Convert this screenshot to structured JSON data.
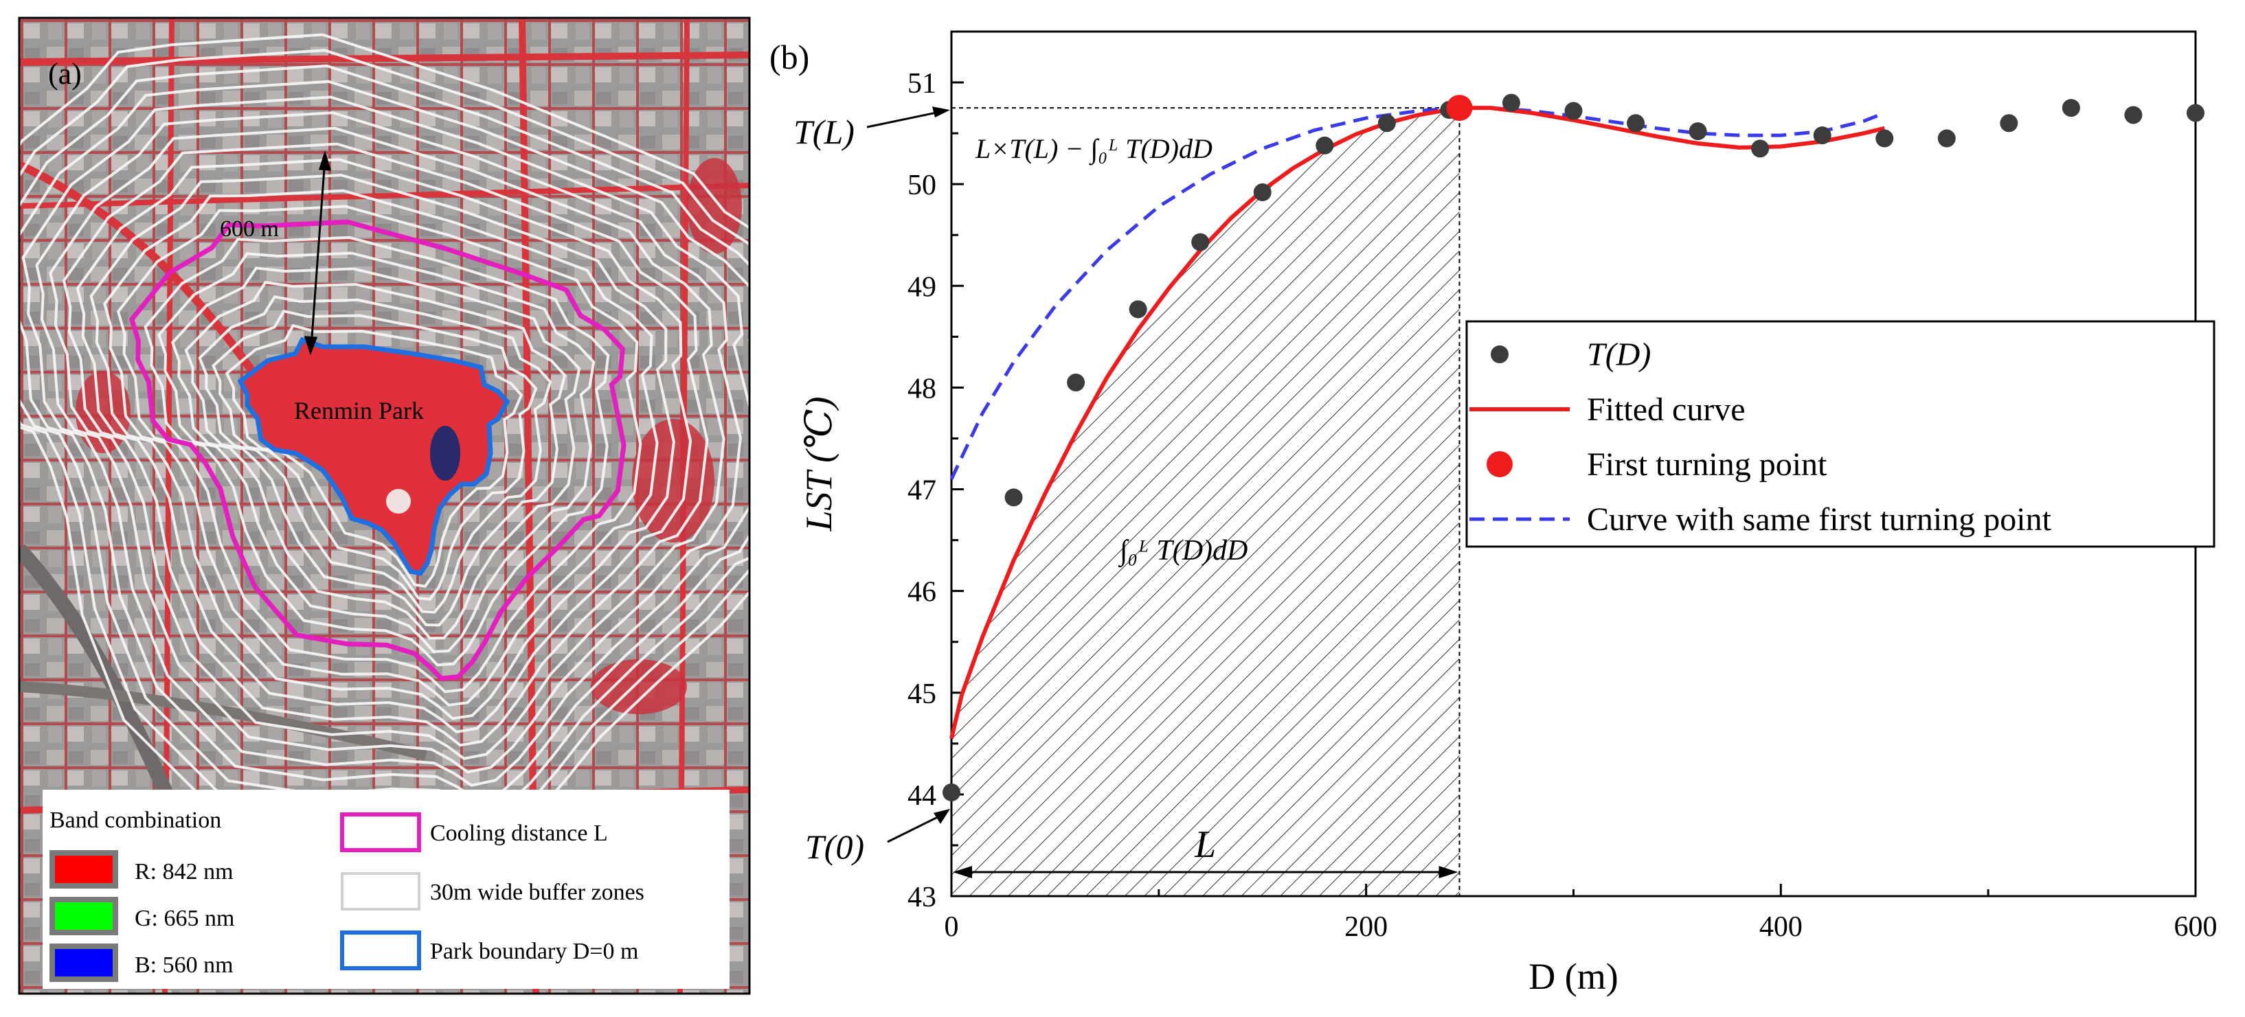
{
  "panel_a": {
    "label": "(a)",
    "park_name": "Renmin Park",
    "distance_label": "600 m",
    "legend": {
      "band_title": "Band combination",
      "bands": [
        {
          "label": "R: 842 nm",
          "color": "#ff0000"
        },
        {
          "label": "G: 665 nm",
          "color": "#00ff00"
        },
        {
          "label": "B: 560 nm",
          "color": "#0000ff"
        }
      ],
      "cooling_label": "Cooling distance L",
      "buffer_label": "30m wide buffer zones",
      "boundary_label": "Park boundary D=0 m"
    },
    "colors": {
      "cooling": "#e41fbf",
      "boundary": "#1f6fe0",
      "buffer": "#f4f4f4"
    }
  },
  "panel_b": {
    "label": "(b)",
    "left_annotations": {
      "tl": "T(L)",
      "t0": "T(0)"
    },
    "area_label_top": "L×T(L) − ∫₀ᴸ T(D)dD",
    "area_label_bottom": "∫₀ᴸ T(D)dD",
    "l_label": "L",
    "legend": {
      "items": [
        {
          "label": "T(D)",
          "kind": "dot",
          "color": "#3c3c3c"
        },
        {
          "label": "Fitted curve",
          "kind": "line",
          "color": "#ee1c1c"
        },
        {
          "label": "First turning point",
          "kind": "bigdot",
          "color": "#ee1c1c"
        },
        {
          "label": "Curve with same first turning point",
          "kind": "dash",
          "color": "#3a3ae8"
        }
      ]
    }
  },
  "chart_data": {
    "type": "scatter",
    "title": "",
    "xlabel": "D (m)",
    "ylabel": "LST (℃)",
    "xlim": [
      0,
      600
    ],
    "ylim": [
      43,
      51.5
    ],
    "xticks": [
      0,
      200,
      400,
      600
    ],
    "yticks": [
      43,
      44,
      45,
      46,
      47,
      48,
      49,
      50,
      51
    ],
    "turning_point": {
      "x": 245,
      "y": 50.75
    },
    "series": [
      {
        "name": "T(D)",
        "kind": "scatter",
        "color": "#3c3c3c",
        "x": [
          0,
          30,
          60,
          90,
          120,
          150,
          180,
          210,
          240,
          270,
          300,
          330,
          360,
          390,
          420,
          450,
          480,
          510,
          540,
          570,
          600
        ],
        "y": [
          44.02,
          46.92,
          48.05,
          48.77,
          49.43,
          49.92,
          50.38,
          50.6,
          50.73,
          50.8,
          50.72,
          50.6,
          50.52,
          50.35,
          50.48,
          50.45,
          50.45,
          50.6,
          50.75,
          50.68,
          50.7
        ]
      },
      {
        "name": "Fitted curve",
        "kind": "line",
        "color": "#ee1c1c",
        "x": [
          0,
          5,
          15,
          30,
          45,
          60,
          75,
          90,
          105,
          120,
          135,
          150,
          165,
          180,
          195,
          210,
          225,
          245,
          260,
          280,
          300,
          320,
          340,
          360,
          380,
          400,
          420,
          440,
          450
        ],
        "y": [
          44.55,
          44.98,
          45.55,
          46.3,
          46.95,
          47.55,
          48.1,
          48.57,
          48.98,
          49.35,
          49.67,
          49.94,
          50.16,
          50.34,
          50.49,
          50.6,
          50.68,
          50.75,
          50.75,
          50.7,
          50.63,
          50.55,
          50.47,
          50.4,
          50.36,
          50.37,
          50.42,
          50.5,
          50.55
        ]
      },
      {
        "name": "Curve with same first turning point",
        "kind": "dash",
        "color": "#3a3ae8",
        "x": [
          0,
          15,
          30,
          50,
          75,
          100,
          125,
          150,
          175,
          200,
          225,
          245,
          260,
          280,
          300,
          320,
          340,
          360,
          380,
          400,
          420,
          440,
          450
        ],
        "y": [
          47.1,
          47.75,
          48.25,
          48.8,
          49.35,
          49.78,
          50.1,
          50.35,
          50.53,
          50.65,
          50.72,
          50.75,
          50.75,
          50.72,
          50.67,
          50.61,
          50.55,
          50.5,
          50.48,
          50.48,
          50.52,
          50.62,
          50.7
        ]
      }
    ]
  }
}
